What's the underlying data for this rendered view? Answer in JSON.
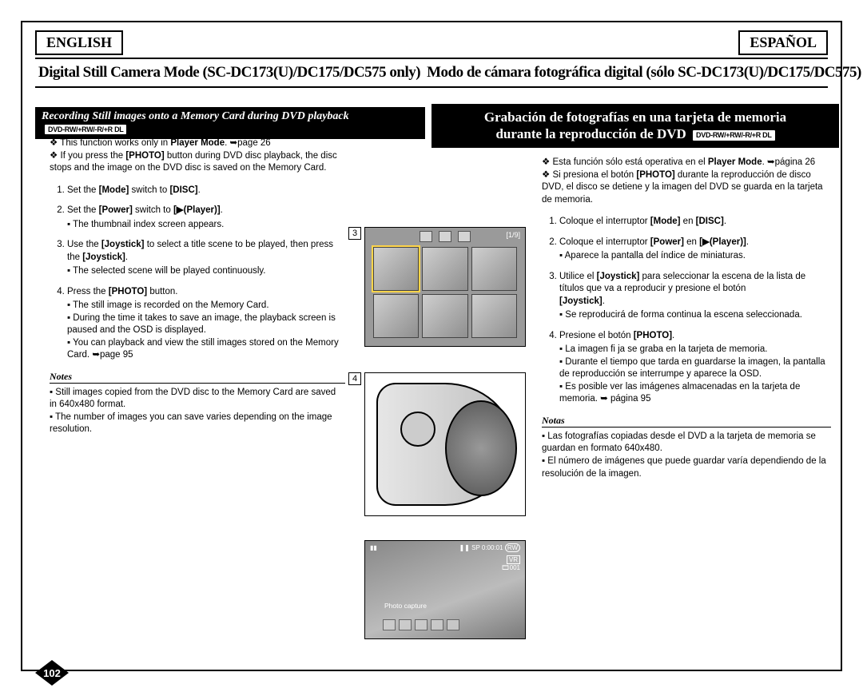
{
  "langs": {
    "left": "ENGLISH",
    "right": "ESPAÑOL"
  },
  "titles": {
    "left": "Digital Still Camera Mode (SC-DC173(U)/DC175/DC575 only)",
    "right": "Modo de cámara fotográfica digital (sólo SC-DC173(U)/DC175/DC575)"
  },
  "sections": {
    "left": "Recording Still images onto a Memory Card during DVD playback",
    "right_line1": "Grabación de fotografías en una tarjeta de memoria",
    "right_line2": "durante la reproducción de DVD",
    "media_badge": "DVD-RW/+RW/-R/+R DL"
  },
  "left": {
    "diamond": [
      "This function works only in <b>Player Mode</b>. ➥page 26",
      "If you press the <b>[PHOTO]</b> button during DVD disc playback, the disc stops and the image on the DVD disc is saved on the Memory Card."
    ],
    "steps": [
      {
        "main": "Set the <b>[Mode]</b> switch to <b>[DISC]</b>."
      },
      {
        "main": "Set the <b>[Power]</b> switch to <b>[▶(Player)]</b>.",
        "sub": [
          "The thumbnail index screen appears."
        ]
      },
      {
        "main": "Use the <b>[Joystick]</b> to select a title scene to be played, then press the <b>[Joystick]</b>.",
        "sub": [
          "The selected scene will be played continuously."
        ]
      },
      {
        "main": "Press the <b>[PHOTO]</b> button.",
        "sub": [
          "The still image is recorded on the Memory Card.",
          "During the time it takes to save an image, the playback screen is paused and the OSD is displayed.",
          "You can playback and view the still images stored on the Memory Card. ➥page 95"
        ]
      }
    ],
    "notes_hdr": "Notes",
    "notes": [
      "Still images copied from the DVD disc to the Memory Card are saved in 640x480 format.",
      "The number of images you can save varies depending on the image resolution."
    ]
  },
  "right": {
    "diamond": [
      "Esta función sólo está operativa en el <b>Player Mode</b>. ➥página 26",
      "Si presiona el botón <b>[PHOTO]</b> durante la reproducción de disco DVD, el disco se detiene y la imagen del DVD se guarda en la tarjeta de memoria."
    ],
    "steps": [
      {
        "main": "Coloque el interruptor <b>[Mode]</b> en <b>[DISC]</b>."
      },
      {
        "main": "Coloque el interruptor <b>[Power]</b> en <b>[▶(Player)]</b>.",
        "sub": [
          "Aparece la pantalla del índice de miniaturas."
        ]
      },
      {
        "main": "Utilice el <b>[Joystick]</b> para seleccionar la escena de la lista de títulos que va a reproducir y presione el botón<br><b>[Joystick]</b>.",
        "sub": [
          "Se reproducirá de forma continua la escena seleccionada."
        ]
      },
      {
        "main": "Presione el botón <b>[PHOTO]</b>.",
        "sub": [
          "La imagen fi ja se graba en la tarjeta de memoria.",
          "Durante el tiempo que tarda en guardarse la imagen, la pantalla de reproducción se interrumpe y aparece la OSD.",
          "Es posible ver las imágenes almacenadas en la tarjeta de memoria. ➥ página 95"
        ]
      }
    ],
    "notes_hdr": "Notas",
    "notes": [
      "Las fotografías copiadas desde el DVD a la tarjeta de memoria se guardan en formato 640x480.",
      "El número de imágenes que puede guardar varía dependiendo de la resolución de la imagen."
    ]
  },
  "figs": {
    "num3": "3",
    "num4": "4",
    "thumb_count": "[1/9]",
    "sp": "SP",
    "time": "0:00:01",
    "rw": "RW",
    "vr": "VR",
    "idx": "001",
    "capture": "Photo capture"
  },
  "page": "102"
}
